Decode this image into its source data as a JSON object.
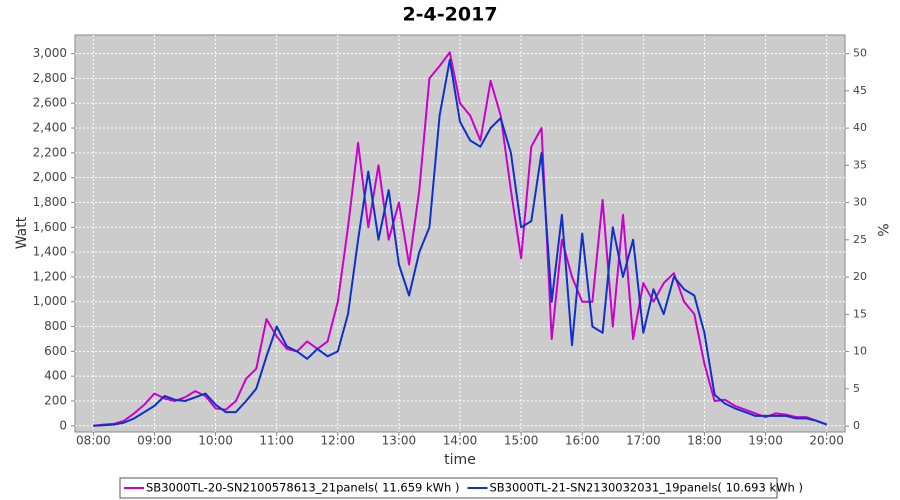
{
  "chart_data": {
    "type": "line",
    "title": "2-4-2017",
    "x_label": "time",
    "y_label": "Watt",
    "y2_label": "%",
    "x": [
      480,
      490,
      500,
      510,
      520,
      530,
      540,
      550,
      560,
      570,
      580,
      590,
      600,
      610,
      620,
      630,
      640,
      650,
      660,
      670,
      680,
      690,
      700,
      710,
      720,
      730,
      740,
      750,
      760,
      770,
      780,
      790,
      800,
      810,
      820,
      830,
      840,
      850,
      860,
      870,
      880,
      890,
      900,
      910,
      920,
      930,
      940,
      950,
      960,
      970,
      980,
      990,
      1000,
      1010,
      1020,
      1030,
      1040,
      1050,
      1060,
      1070,
      1080,
      1090,
      1100,
      1110,
      1120,
      1130,
      1140,
      1150,
      1160,
      1170,
      1180,
      1190,
      1200
    ],
    "series": [
      {
        "name": "SB3000TL-20-SN2100578613_21panels( 11.659 kWh )",
        "color": "#cc00cc",
        "values": [
          0,
          10,
          15,
          40,
          100,
          170,
          260,
          220,
          200,
          230,
          280,
          240,
          140,
          130,
          200,
          380,
          460,
          860,
          720,
          620,
          600,
          680,
          620,
          680,
          1000,
          1600,
          2280,
          1600,
          2100,
          1500,
          1800,
          1300,
          1900,
          2800,
          2900,
          3010,
          2600,
          2500,
          2300,
          2780,
          2500,
          1900,
          1350,
          2250,
          2400,
          700,
          1500,
          1200,
          1000,
          1000,
          1820,
          800,
          1700,
          700,
          1150,
          1000,
          1150,
          1230,
          1000,
          900,
          500,
          200,
          210,
          160,
          130,
          100,
          70,
          100,
          90,
          70,
          70,
          40,
          10
        ]
      },
      {
        "name": "SB3000TL-21-SN2130032031_19panels( 10.693 kWh )",
        "color": "#1030cc",
        "values": [
          0,
          5,
          10,
          25,
          60,
          110,
          160,
          240,
          210,
          200,
          230,
          260,
          170,
          110,
          110,
          200,
          300,
          560,
          800,
          640,
          600,
          540,
          620,
          560,
          600,
          900,
          1500,
          2050,
          1500,
          1900,
          1300,
          1050,
          1400,
          1600,
          2500,
          2950,
          2450,
          2300,
          2250,
          2400,
          2480,
          2200,
          1600,
          1650,
          2200,
          1000,
          1700,
          650,
          1550,
          800,
          750,
          1600,
          1200,
          1500,
          750,
          1100,
          900,
          1200,
          1100,
          1050,
          750,
          250,
          180,
          140,
          110,
          80,
          80,
          80,
          80,
          60,
          60,
          40,
          10
        ]
      }
    ],
    "xlim": [
      462,
      1218
    ],
    "xticks": [
      {
        "value": 480,
        "label": "08:00"
      },
      {
        "value": 540,
        "label": "09:00"
      },
      {
        "value": 600,
        "label": "10:00"
      },
      {
        "value": 660,
        "label": "11:00"
      },
      {
        "value": 720,
        "label": "12:00"
      },
      {
        "value": 780,
        "label": "13:00"
      },
      {
        "value": 840,
        "label": "14:00"
      },
      {
        "value": 900,
        "label": "15:00"
      },
      {
        "value": 960,
        "label": "16:00"
      },
      {
        "value": 1020,
        "label": "17:00"
      },
      {
        "value": 1080,
        "label": "18:00"
      },
      {
        "value": 1140,
        "label": "19:00"
      },
      {
        "value": 1200,
        "label": "20:00"
      }
    ],
    "ylim": [
      -50,
      3150
    ],
    "yticks": [
      0,
      200,
      400,
      600,
      800,
      {
        "value": 1000,
        "label": "1,000"
      },
      {
        "value": 1200,
        "label": "1,200"
      },
      {
        "value": 1400,
        "label": "1,400"
      },
      {
        "value": 1600,
        "label": "1,600"
      },
      {
        "value": 1800,
        "label": "1,800"
      },
      {
        "value": 2000,
        "label": "2,000"
      },
      {
        "value": 2200,
        "label": "2,200"
      },
      {
        "value": 2400,
        "label": "2,400"
      },
      {
        "value": 2600,
        "label": "2,600"
      },
      {
        "value": 2800,
        "label": "2,800"
      },
      {
        "value": 3000,
        "label": "3,000"
      }
    ],
    "y2lim": [
      -0.8,
      52.5
    ],
    "y2ticks": [
      0,
      5,
      10,
      15,
      20,
      25,
      30,
      35,
      40,
      45,
      50
    ],
    "grid": true,
    "legend": "bottom"
  }
}
